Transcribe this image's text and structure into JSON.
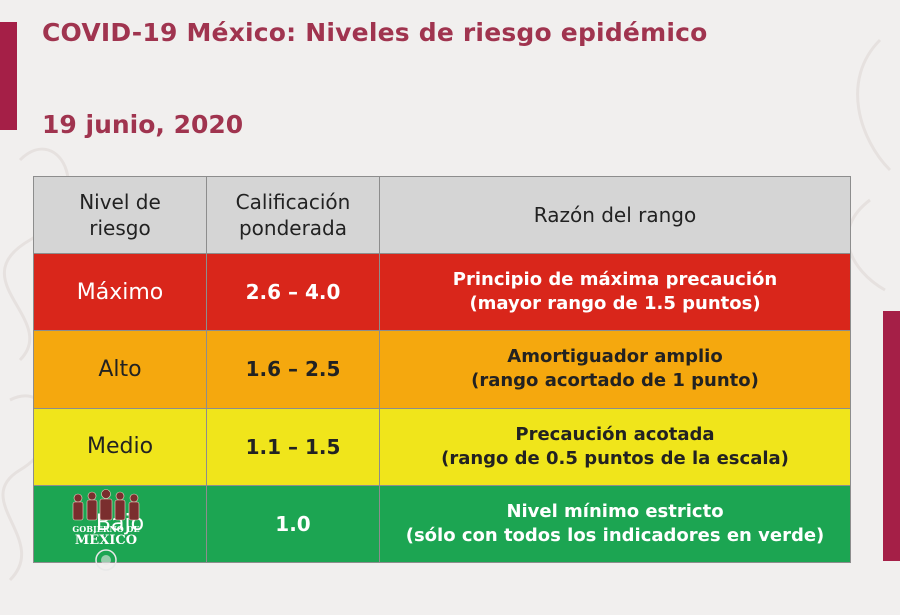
{
  "title": "COVID-19 México: Niveles de riesgo epidémico",
  "date": "19 junio, 2020",
  "colors": {
    "title": "#a0344f",
    "accent": "#a51f47",
    "maximo": "#d9261b",
    "alto": "#f5a80e",
    "medio": "#f0e51b",
    "bajo": "#1ca552",
    "header": "#d5d5d5"
  },
  "table": {
    "headers": [
      {
        "line1": "Nivel de",
        "line2": "riesgo"
      },
      {
        "line1": "Calificación",
        "line2": "ponderada"
      },
      {
        "line1": "Razón del rango",
        "line2": ""
      }
    ],
    "rows": [
      {
        "level": "Máximo",
        "score": "2.6 – 4.0",
        "reason_line1": "Principio de máxima precaución",
        "reason_line2": "(mayor rango de 1.5 puntos)"
      },
      {
        "level": "Alto",
        "score": "1.6 – 2.5",
        "reason_line1": "Amortiguador amplio",
        "reason_line2": "(rango acortado de 1 punto)"
      },
      {
        "level": "Medio",
        "score": "1.1 – 1.5",
        "reason_line1": "Precaución acotada",
        "reason_line2": "(rango de 0.5 puntos de la escala)"
      },
      {
        "level": "Bajo",
        "score": "1.0",
        "reason_line1": "Nivel mínimo estricto",
        "reason_line2": "(sólo con todos los indicadores en verde)"
      }
    ]
  },
  "logo": {
    "line1": "GOBIERNO DE",
    "line2": "MÉXICO"
  }
}
